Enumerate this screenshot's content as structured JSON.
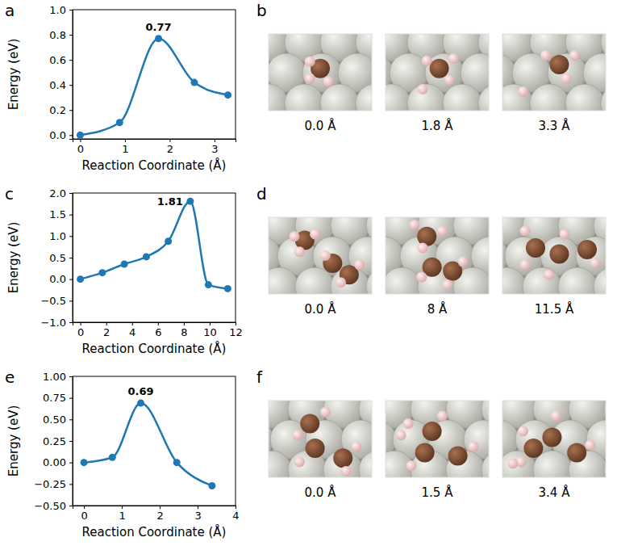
{
  "chart_data": [
    {
      "type": "line",
      "panel_label": "a",
      "xlabel": "Reaction Coordinate (Å)",
      "ylabel": "Energy (eV)",
      "x": [
        0,
        0.88,
        1.75,
        2.55,
        3.3
      ],
      "values": [
        0,
        0.1,
        0.77,
        0.42,
        0.32
      ],
      "color": "#1f77b4",
      "marker": "circle",
      "xlim": [
        -0.17,
        3.47
      ],
      "xticks": [
        0,
        1,
        2,
        3
      ],
      "ylim": [
        -0.03,
        1.0
      ],
      "yticks": [
        {
          "value": 0,
          "label": "0.0"
        },
        {
          "value": 0.2,
          "label": "0.2"
        },
        {
          "value": 0.4,
          "label": "0.4"
        },
        {
          "value": 0.6,
          "label": "0.6"
        },
        {
          "value": 0.8,
          "label": "0.8"
        },
        {
          "value": 1.0,
          "label": "1.0"
        }
      ],
      "annotations": [
        {
          "text": "0.77",
          "x": 1.75,
          "y": 0.77
        }
      ]
    },
    {
      "type": "line",
      "panel_label": "c",
      "xlabel": "Reaction Coordinate (Å)",
      "ylabel": "Energy (eV)",
      "x": [
        0,
        1.7,
        3.4,
        5.1,
        6.8,
        8.5,
        9.9,
        11.4
      ],
      "values": [
        0,
        0.15,
        0.35,
        0.52,
        0.88,
        1.81,
        -0.13,
        -0.22
      ],
      "color": "#1f77b4",
      "marker": "circle",
      "xlim": [
        -0.6,
        12.0
      ],
      "xticks": [
        0,
        2,
        4,
        6,
        8,
        10,
        12
      ],
      "ylim": [
        -1.0,
        2.0
      ],
      "yticks": [
        {
          "value": -1,
          "label": "−1.0"
        },
        {
          "value": -0.5,
          "label": "−0.5"
        },
        {
          "value": 0,
          "label": "0.0"
        },
        {
          "value": 0.5,
          "label": "0.5"
        },
        {
          "value": 1,
          "label": "1.0"
        },
        {
          "value": 1.5,
          "label": "1.5"
        },
        {
          "value": 2,
          "label": "2.0"
        }
      ],
      "annotations": [
        {
          "text": "1.81",
          "x": 8.5,
          "y": 1.81
        }
      ]
    },
    {
      "type": "line",
      "panel_label": "e",
      "xlabel": "Reaction Coordinate (Å)",
      "ylabel": "Energy (eV)",
      "x": [
        0,
        0.75,
        1.5,
        2.45,
        3.38
      ],
      "values": [
        0,
        0.06,
        0.69,
        0.0,
        -0.27
      ],
      "color": "#1f77b4",
      "marker": "circle",
      "xlim": [
        -0.3,
        4.0
      ],
      "xticks": [
        0,
        1,
        2,
        3,
        4
      ],
      "ylim": [
        -0.5,
        1.0
      ],
      "yticks": [
        {
          "value": -0.5,
          "label": "−0.50"
        },
        {
          "value": -0.25,
          "label": "−0.25"
        },
        {
          "value": 0,
          "label": "0.00"
        },
        {
          "value": 0.25,
          "label": "0.25"
        },
        {
          "value": 0.5,
          "label": "0.50"
        },
        {
          "value": 0.75,
          "label": "0.75"
        },
        {
          "value": 1.0,
          "label": "1.00"
        }
      ],
      "annotations": [
        {
          "text": "0.69",
          "x": 1.5,
          "y": 0.69
        }
      ]
    }
  ],
  "structures": [
    {
      "panel_label": "b",
      "captions": [
        "0.0 Å",
        "1.8 Å",
        "3.3 Å"
      ]
    },
    {
      "panel_label": "d",
      "captions": [
        "0.0 Å",
        "8 Å",
        "11.5 Å"
      ]
    },
    {
      "panel_label": "f",
      "captions": [
        "0.0 Å",
        "1.5 Å",
        "3.4 Å"
      ]
    }
  ]
}
